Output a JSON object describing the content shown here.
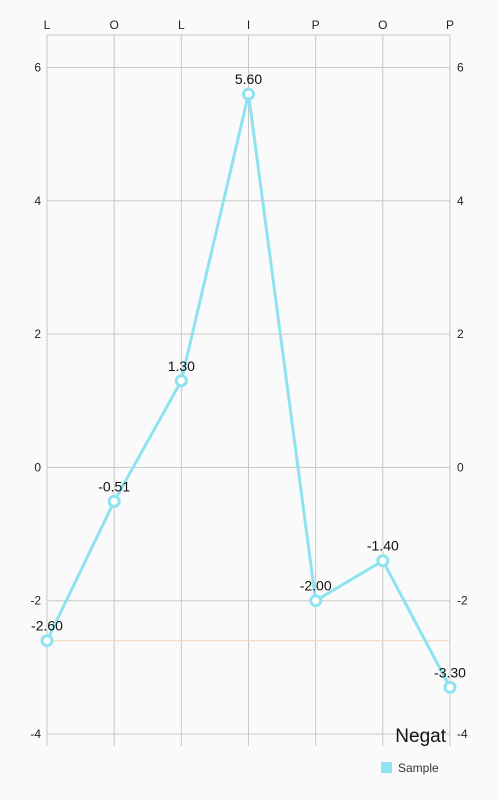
{
  "chart_data": {
    "type": "line",
    "categories": [
      "L",
      "O",
      "L",
      "I",
      "P",
      "O",
      "P"
    ],
    "series": [
      {
        "name": "Sample",
        "values": [
          -2.6,
          -0.51,
          1.3,
          5.6,
          -2.0,
          -1.4,
          -3.3
        ],
        "labels": [
          "-2.60",
          "-0.51",
          "1.30",
          "5.60",
          "-2.00",
          "-1.40",
          "-3.30"
        ],
        "color": "#8ee3f0"
      }
    ],
    "y_ticks": [
      "-4",
      "-2",
      "0",
      "2",
      "4",
      "6"
    ],
    "ylim": [
      -4,
      6
    ],
    "limit_line": {
      "value": -2.6,
      "color": "#f5d6b8"
    },
    "description": "Negat",
    "legend": {
      "position": "bottom-right",
      "entries": [
        "Sample"
      ]
    },
    "grid": true,
    "grid_color": "#c8c8c8",
    "xaxis_position": "top",
    "yaxis_sides": [
      "left",
      "right"
    ]
  }
}
